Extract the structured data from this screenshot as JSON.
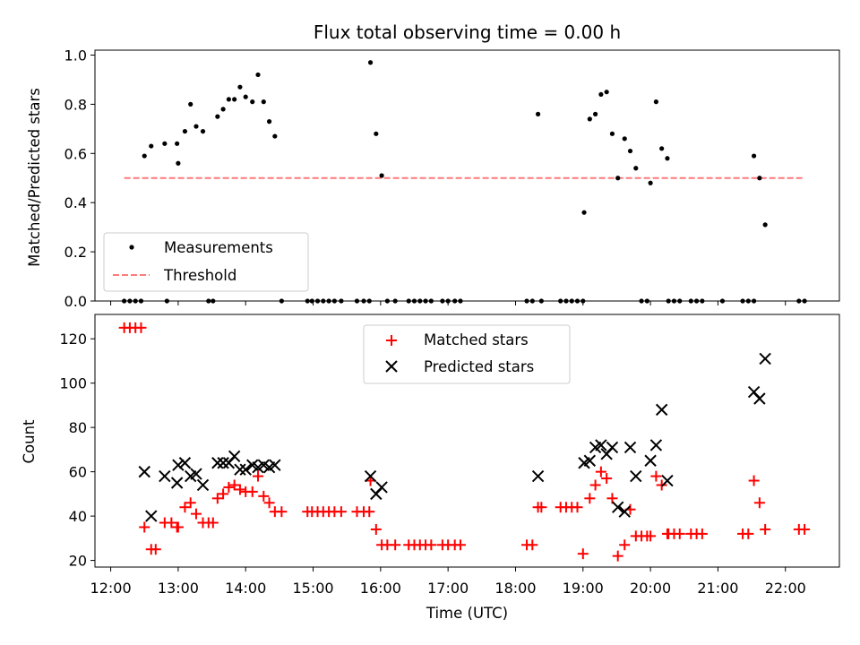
{
  "chart_data": [
    {
      "type": "scatter",
      "title": "Flux total observing time = 0.00 h",
      "xlabel": "",
      "ylabel": "Matched/Predicted stars",
      "xlim": [
        "11:46",
        "22:48"
      ],
      "ylim": [
        0,
        1.02
      ],
      "yticks": [
        "0.0",
        "0.2",
        "0.4",
        "0.6",
        "0.8",
        "1.0"
      ],
      "grid": false,
      "legend": {
        "placement": "lower-left",
        "entries": [
          "Measurements",
          "Threshold"
        ]
      },
      "threshold": {
        "name": "Threshold",
        "value": 0.5,
        "x_start": "12:12",
        "x_end": "22:17",
        "color": "#ff7a7a"
      },
      "series": [
        {
          "name": "Measurements",
          "color": "#000000",
          "marker": "dot",
          "points": [
            [
              "12:12",
              0
            ],
            [
              "12:17",
              0
            ],
            [
              "12:22",
              0
            ],
            [
              "12:27",
              0
            ],
            [
              "12:30",
              0.59
            ],
            [
              "12:36",
              0.63
            ],
            [
              "12:48",
              0.64
            ],
            [
              "12:50",
              0
            ],
            [
              "12:59",
              0.64
            ],
            [
              "13:00",
              0.56
            ],
            [
              "13:06",
              0.69
            ],
            [
              "13:11",
              0.8
            ],
            [
              "13:16",
              0.71
            ],
            [
              "13:22",
              0.69
            ],
            [
              "13:27",
              0
            ],
            [
              "13:31",
              0
            ],
            [
              "13:35",
              0.75
            ],
            [
              "13:40",
              0.78
            ],
            [
              "13:45",
              0.82
            ],
            [
              "13:50",
              0.82
            ],
            [
              "13:55",
              0.87
            ],
            [
              "14:00",
              0.83
            ],
            [
              "14:06",
              0.81
            ],
            [
              "14:11",
              0.92
            ],
            [
              "14:16",
              0.81
            ],
            [
              "14:21",
              0.73
            ],
            [
              "14:26",
              0.67
            ],
            [
              "14:32",
              0
            ],
            [
              "14:55",
              0
            ],
            [
              "14:59",
              0
            ],
            [
              "15:04",
              0
            ],
            [
              "15:09",
              0
            ],
            [
              "15:14",
              0
            ],
            [
              "15:19",
              0
            ],
            [
              "15:25",
              0
            ],
            [
              "15:39",
              0
            ],
            [
              "15:45",
              0
            ],
            [
              "15:50",
              0
            ],
            [
              "15:51",
              0.97
            ],
            [
              "15:56",
              0.68
            ],
            [
              "16:01",
              0.51
            ],
            [
              "16:06",
              0
            ],
            [
              "16:13",
              0
            ],
            [
              "16:25",
              0
            ],
            [
              "16:30",
              0
            ],
            [
              "16:35",
              0
            ],
            [
              "16:40",
              0
            ],
            [
              "16:45",
              0
            ],
            [
              "16:55",
              0
            ],
            [
              "17:00",
              0
            ],
            [
              "17:06",
              0
            ],
            [
              "17:11",
              0
            ],
            [
              "18:10",
              0
            ],
            [
              "18:15",
              0
            ],
            [
              "18:20",
              0.76
            ],
            [
              "18:23",
              0
            ],
            [
              "18:40",
              0
            ],
            [
              "18:45",
              0
            ],
            [
              "18:50",
              0
            ],
            [
              "18:55",
              0
            ],
            [
              "19:00",
              0
            ],
            [
              "19:01",
              0.36
            ],
            [
              "19:06",
              0.74
            ],
            [
              "19:11",
              0.76
            ],
            [
              "19:16",
              0.84
            ],
            [
              "19:21",
              0.85
            ],
            [
              "19:26",
              0.68
            ],
            [
              "19:31",
              0.5
            ],
            [
              "19:37",
              0.66
            ],
            [
              "19:42",
              0.61
            ],
            [
              "19:47",
              0.54
            ],
            [
              "19:52",
              0
            ],
            [
              "19:57",
              0
            ],
            [
              "20:00",
              0.48
            ],
            [
              "20:05",
              0.81
            ],
            [
              "20:10",
              0.62
            ],
            [
              "20:15",
              0.58
            ],
            [
              "20:16",
              0
            ],
            [
              "20:21",
              0
            ],
            [
              "20:26",
              0
            ],
            [
              "20:36",
              0
            ],
            [
              "20:41",
              0
            ],
            [
              "20:46",
              0
            ],
            [
              "21:04",
              0
            ],
            [
              "21:22",
              0
            ],
            [
              "21:27",
              0
            ],
            [
              "21:32",
              0
            ],
            [
              "21:32",
              0.59
            ],
            [
              "21:37",
              0.5
            ],
            [
              "21:42",
              0.31
            ],
            [
              "22:12",
              0
            ],
            [
              "22:17",
              0
            ]
          ]
        }
      ]
    },
    {
      "type": "scatter",
      "title": "",
      "xlabel": "Time (UTC)",
      "ylabel": "Count",
      "xlim": [
        "11:46",
        "22:48"
      ],
      "ylim": [
        17,
        131
      ],
      "xticks": [
        "12:00",
        "13:00",
        "14:00",
        "15:00",
        "16:00",
        "17:00",
        "18:00",
        "19:00",
        "20:00",
        "21:00",
        "22:00"
      ],
      "yticks": [
        "20",
        "40",
        "60",
        "80",
        "100",
        "120"
      ],
      "grid": false,
      "legend": {
        "placement": "upper-center",
        "entries": [
          "Matched stars",
          "Predicted stars"
        ]
      },
      "series": [
        {
          "name": "Matched stars",
          "color": "#ff0000",
          "marker": "plus",
          "points": [
            [
              "12:12",
              125
            ],
            [
              "12:17",
              125
            ],
            [
              "12:22",
              125
            ],
            [
              "12:27",
              125
            ],
            [
              "12:30",
              35
            ],
            [
              "12:36",
              25
            ],
            [
              "12:40",
              25
            ],
            [
              "12:48",
              37
            ],
            [
              "12:54",
              37
            ],
            [
              "12:59",
              35
            ],
            [
              "13:00",
              35
            ],
            [
              "13:06",
              44
            ],
            [
              "13:11",
              46
            ],
            [
              "13:16",
              41
            ],
            [
              "13:22",
              37
            ],
            [
              "13:27",
              37
            ],
            [
              "13:31",
              37
            ],
            [
              "13:35",
              48
            ],
            [
              "13:40",
              50
            ],
            [
              "13:45",
              53
            ],
            [
              "13:50",
              54
            ],
            [
              "13:55",
              52
            ],
            [
              "14:00",
              51
            ],
            [
              "14:06",
              51
            ],
            [
              "14:11",
              58
            ],
            [
              "14:16",
              49
            ],
            [
              "14:21",
              46
            ],
            [
              "14:26",
              42
            ],
            [
              "14:32",
              42
            ],
            [
              "14:55",
              42
            ],
            [
              "14:59",
              42
            ],
            [
              "15:04",
              42
            ],
            [
              "15:09",
              42
            ],
            [
              "15:14",
              42
            ],
            [
              "15:19",
              42
            ],
            [
              "15:25",
              42
            ],
            [
              "15:39",
              42
            ],
            [
              "15:45",
              42
            ],
            [
              "15:50",
              42
            ],
            [
              "15:51",
              56
            ],
            [
              "15:56",
              34
            ],
            [
              "16:01",
              27
            ],
            [
              "16:06",
              27
            ],
            [
              "16:13",
              27
            ],
            [
              "16:25",
              27
            ],
            [
              "16:30",
              27
            ],
            [
              "16:35",
              27
            ],
            [
              "16:40",
              27
            ],
            [
              "16:45",
              27
            ],
            [
              "16:55",
              27
            ],
            [
              "17:00",
              27
            ],
            [
              "17:06",
              27
            ],
            [
              "17:11",
              27
            ],
            [
              "18:10",
              27
            ],
            [
              "18:15",
              27
            ],
            [
              "18:20",
              44
            ],
            [
              "18:23",
              44
            ],
            [
              "18:40",
              44
            ],
            [
              "18:45",
              44
            ],
            [
              "18:50",
              44
            ],
            [
              "18:55",
              44
            ],
            [
              "19:00",
              23
            ],
            [
              "19:06",
              48
            ],
            [
              "19:11",
              54
            ],
            [
              "19:16",
              60
            ],
            [
              "19:21",
              57
            ],
            [
              "19:26",
              48
            ],
            [
              "19:31",
              22
            ],
            [
              "19:37",
              27
            ],
            [
              "19:42",
              43
            ],
            [
              "19:47",
              31
            ],
            [
              "19:52",
              31
            ],
            [
              "19:57",
              31
            ],
            [
              "20:00",
              31
            ],
            [
              "20:05",
              58
            ],
            [
              "20:10",
              54
            ],
            [
              "20:15",
              32
            ],
            [
              "20:16",
              32
            ],
            [
              "20:21",
              32
            ],
            [
              "20:26",
              32
            ],
            [
              "20:36",
              32
            ],
            [
              "20:41",
              32
            ],
            [
              "20:46",
              32
            ],
            [
              "21:22",
              32
            ],
            [
              "21:27",
              32
            ],
            [
              "21:32",
              56
            ],
            [
              "21:37",
              46
            ],
            [
              "21:42",
              34
            ],
            [
              "22:12",
              34
            ],
            [
              "22:17",
              34
            ]
          ]
        },
        {
          "name": "Predicted stars",
          "color": "#000000",
          "marker": "x",
          "points": [
            [
              "12:30",
              60
            ],
            [
              "12:36",
              40
            ],
            [
              "12:48",
              58
            ],
            [
              "12:59",
              55
            ],
            [
              "13:00",
              63
            ],
            [
              "13:06",
              64
            ],
            [
              "13:11",
              58
            ],
            [
              "13:16",
              59
            ],
            [
              "13:22",
              54
            ],
            [
              "13:35",
              64
            ],
            [
              "13:40",
              64
            ],
            [
              "13:45",
              64
            ],
            [
              "13:50",
              67
            ],
            [
              "13:55",
              61
            ],
            [
              "14:00",
              61
            ],
            [
              "14:06",
              63
            ],
            [
              "14:11",
              62
            ],
            [
              "14:16",
              63
            ],
            [
              "14:21",
              62
            ],
            [
              "14:26",
              63
            ],
            [
              "15:51",
              58
            ],
            [
              "15:56",
              50
            ],
            [
              "16:01",
              53
            ],
            [
              "18:20",
              58
            ],
            [
              "19:01",
              64
            ],
            [
              "19:06",
              65
            ],
            [
              "19:11",
              71
            ],
            [
              "19:16",
              72
            ],
            [
              "19:21",
              68
            ],
            [
              "19:26",
              71
            ],
            [
              "19:31",
              44
            ],
            [
              "19:37",
              42
            ],
            [
              "19:42",
              71
            ],
            [
              "19:47",
              58
            ],
            [
              "20:00",
              65
            ],
            [
              "20:05",
              72
            ],
            [
              "20:10",
              88
            ],
            [
              "20:15",
              56
            ],
            [
              "21:32",
              96
            ],
            [
              "21:37",
              93
            ],
            [
              "21:42",
              111
            ]
          ]
        }
      ]
    }
  ]
}
